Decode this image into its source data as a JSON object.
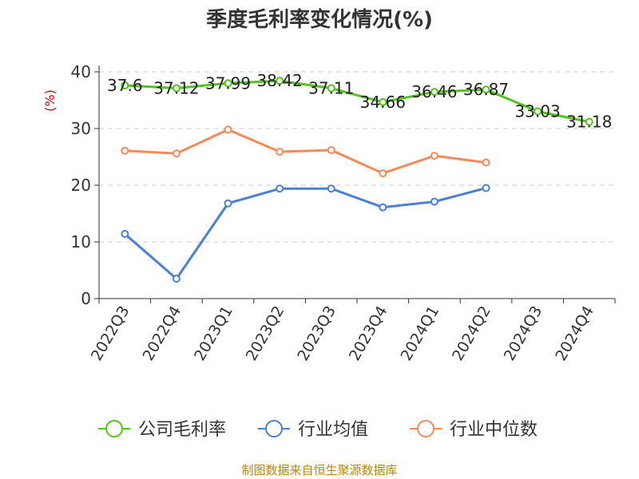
{
  "chart_data": {
    "type": "line",
    "title": "季度毛利率变化情况(%)",
    "ylabel": "(%)",
    "categories": [
      "2022Q3",
      "2022Q4",
      "2023Q1",
      "2023Q2",
      "2023Q3",
      "2023Q4",
      "2024Q1",
      "2024Q2",
      "2024Q3",
      "2024Q4"
    ],
    "yticks": [
      "0",
      "10",
      "20",
      "30",
      "40"
    ],
    "ylim": [
      0,
      40
    ],
    "grid": "horizontal dashed",
    "legend_position": "bottom",
    "series": [
      {
        "name": "公司毛利率",
        "color": "#52c41a",
        "values": [
          37.6,
          37.12,
          37.99,
          38.42,
          37.11,
          34.66,
          36.46,
          36.87,
          33.03,
          31.18
        ],
        "labels": [
          "37.6",
          "37.12",
          "37.99",
          "38.42",
          "37.11",
          "34.66",
          "36.46",
          "36.87",
          "33.03",
          "31.18"
        ]
      },
      {
        "name": "行业均值",
        "color": "#4a7fdc",
        "values": [
          11.4,
          3.5,
          16.8,
          19.4,
          19.4,
          16.1,
          17.1,
          19.5,
          null,
          null
        ]
      },
      {
        "name": "行业中位数",
        "color": "#f98a57",
        "values": [
          26.1,
          25.6,
          29.8,
          25.9,
          26.2,
          22.1,
          25.2,
          24.0,
          null,
          null
        ]
      }
    ],
    "source": "制图数据来自恒生聚源数据库",
    "colors": {
      "ylabel": "#cc0000",
      "source": "#b8860b",
      "grid": "#cccccc",
      "axis": "#333333"
    }
  }
}
